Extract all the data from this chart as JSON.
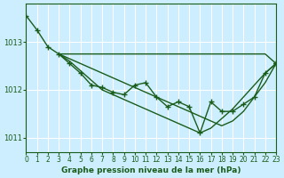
{
  "bg_color": "#cceeff",
  "line_color": "#1a5c1a",
  "grid_color": "#ffffff",
  "title": "Graphe pression niveau de la mer (hPa)",
  "xlim": [
    0,
    23
  ],
  "ylim": [
    1010.7,
    1013.8
  ],
  "yticks": [
    1011,
    1012,
    1013
  ],
  "xticks": [
    0,
    1,
    2,
    3,
    4,
    5,
    6,
    7,
    8,
    9,
    10,
    11,
    12,
    13,
    14,
    15,
    16,
    17,
    18,
    19,
    20,
    21,
    22,
    23
  ],
  "main_x": [
    0,
    1,
    2,
    3,
    4,
    5,
    6,
    7,
    8,
    9,
    10,
    11,
    12,
    13,
    14,
    15,
    16,
    17,
    18,
    19,
    20,
    21,
    22,
    23
  ],
  "main_y": [
    1013.55,
    1013.25,
    1012.9,
    1012.75,
    1012.55,
    1012.35,
    1012.1,
    1012.05,
    1011.95,
    1011.9,
    1012.1,
    1012.15,
    1011.85,
    1011.65,
    1011.75,
    1011.65,
    1011.1,
    1011.75,
    1011.55,
    1011.55,
    1011.7,
    1011.85,
    1012.35,
    1012.55
  ],
  "flat_x": [
    3,
    4,
    5,
    6,
    7,
    8,
    9,
    10,
    11,
    12,
    13,
    14,
    15,
    16,
    17,
    18,
    19,
    20,
    21,
    22,
    23
  ],
  "flat_y": [
    1012.75,
    1012.75,
    1012.75,
    1012.75,
    1012.75,
    1012.75,
    1012.75,
    1012.75,
    1012.75,
    1012.75,
    1012.75,
    1012.75,
    1012.75,
    1012.75,
    1012.75,
    1012.75,
    1012.75,
    1012.75,
    1012.75,
    1012.75,
    1012.55
  ],
  "decline1_x": [
    3,
    4,
    5,
    6,
    7,
    8,
    9,
    10,
    11,
    12,
    13,
    14,
    15,
    16,
    17,
    18,
    19,
    20,
    21,
    22,
    23
  ],
  "decline1_y": [
    1012.75,
    1012.65,
    1012.55,
    1012.45,
    1012.35,
    1012.25,
    1012.15,
    1012.05,
    1011.95,
    1011.85,
    1011.75,
    1011.65,
    1011.55,
    1011.45,
    1011.35,
    1011.25,
    1011.35,
    1011.55,
    1011.85,
    1012.15,
    1012.55
  ],
  "decline2_x": [
    3,
    4,
    5,
    6,
    7,
    8,
    9,
    10,
    11,
    12,
    13,
    14,
    15,
    16,
    17,
    18,
    19,
    20,
    21,
    22,
    23
  ],
  "decline2_y": [
    1012.75,
    1012.6,
    1012.4,
    1012.2,
    1012.0,
    1011.9,
    1011.8,
    1011.7,
    1011.6,
    1011.5,
    1011.4,
    1011.3,
    1011.2,
    1011.1,
    1011.2,
    1011.4,
    1011.6,
    1011.85,
    1012.1,
    1012.35,
    1012.55
  ],
  "marker": "+",
  "markersize": 5,
  "linewidth": 1.0,
  "title_fontsize": 6.5
}
